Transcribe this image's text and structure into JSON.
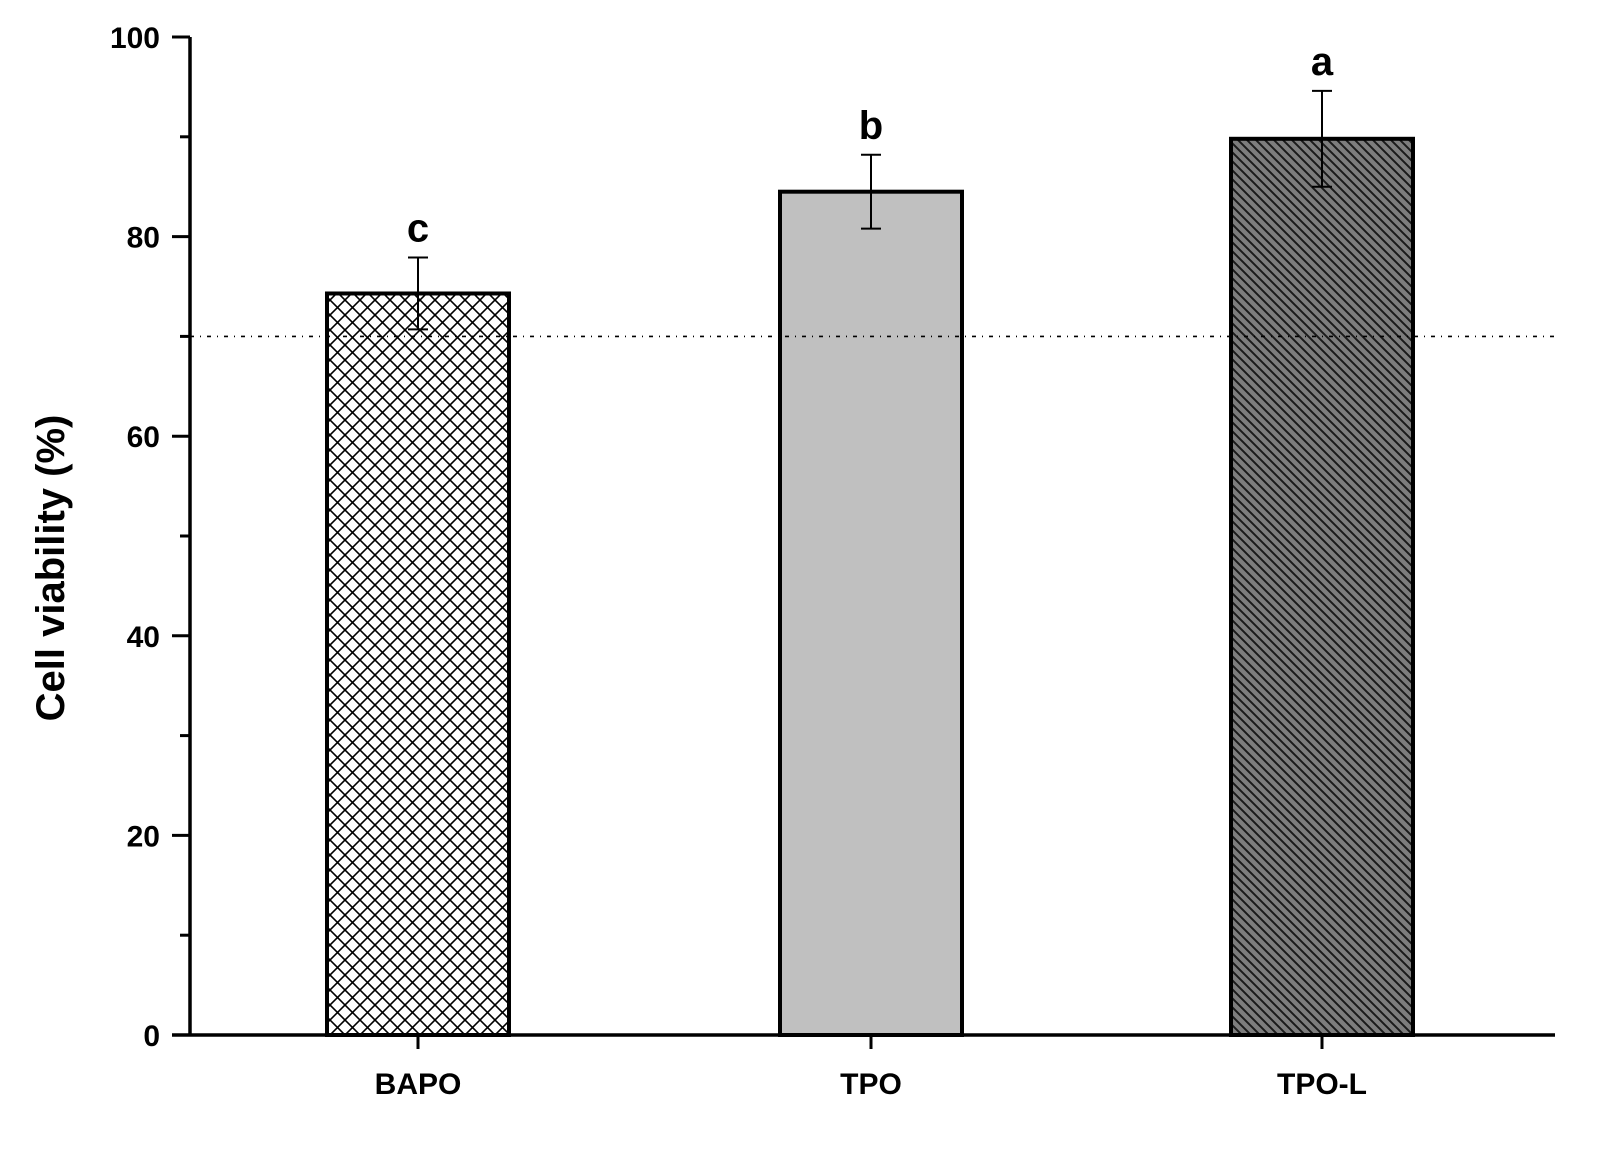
{
  "chart_data": {
    "type": "bar",
    "title": "",
    "xlabel": "",
    "ylabel": "Cell viability (%)",
    "ylim": [
      0,
      100
    ],
    "yticks": [
      0,
      20,
      40,
      60,
      80,
      100
    ],
    "y_minor_step": 10,
    "grid": false,
    "legend": "none",
    "categories": [
      "BAPO",
      "TPO",
      "TPO-L"
    ],
    "values": [
      74.3,
      84.5,
      89.8
    ],
    "errors": [
      3.6,
      3.7,
      4.8
    ],
    "significance_labels": [
      "c",
      "b",
      "a"
    ],
    "fill_patterns": [
      "crosshatch",
      "solid-light-gray",
      "diagonal-hatch-dark"
    ],
    "colors": {
      "light_gray": "#c0c0c0",
      "dark_gray": "#7d7d7d",
      "line": "#000000",
      "background": "#ffffff"
    },
    "reference_line": {
      "y": 70,
      "style": "dash-dot"
    }
  }
}
